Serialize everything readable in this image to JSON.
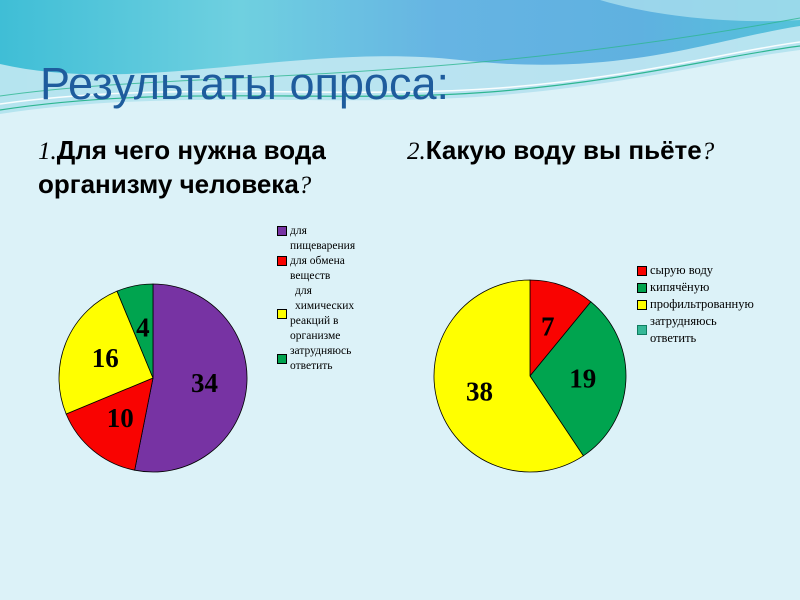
{
  "slide": {
    "title": "Результаты опроса:",
    "title_color": "#1E5C9D",
    "background_color": "#DCF2F8",
    "accent_wave_colors": [
      "#3FBED6",
      "#66B4E3",
      "#2EB691",
      "#C2E8F2"
    ]
  },
  "questions": [
    {
      "prefix": "1.",
      "text": "Для чего нужна вода\nорганизму человека",
      "suffix": "?"
    },
    {
      "prefix": "2.",
      "text": "Какую воду вы пьёте",
      "suffix": "?"
    }
  ],
  "chart_data": [
    {
      "type": "pie",
      "title": "1.Для чего нужна вода организму человека?",
      "categories": [
        "для пищеварения",
        "для обмена веществ",
        "для химических реакций в организме",
        "затрудняюсь ответить"
      ],
      "values": [
        34,
        10,
        16,
        4
      ],
      "colors": [
        "#7733A3",
        "#F90301",
        "#FFFF00",
        "#00A44F"
      ],
      "data_label_color": "#000000",
      "start_angle_deg": 0,
      "direction": "clockwise",
      "legend_position": "right",
      "legend": [
        {
          "lines": [
            "для",
            "пищеварения"
          ],
          "color": "#7733A3"
        },
        {
          "lines": [
            "для обмена",
            "веществ"
          ],
          "color": "#F90301"
        },
        {
          "lines": [
            "для химических",
            "реакций в",
            "организме"
          ],
          "color": "#FFFF00"
        },
        {
          "lines": [
            "затрудняюсь",
            "ответить"
          ],
          "color": "#00A44F"
        }
      ]
    },
    {
      "type": "pie",
      "title": "2.Какую воду вы пьёте?",
      "categories": [
        "сырую воду",
        "кипячёную",
        "профильтрованную",
        "затрудняюсь ответить"
      ],
      "values": [
        7,
        19,
        38,
        0
      ],
      "colors": [
        "#F90301",
        "#00A44F",
        "#FFFF00",
        "#35B897"
      ],
      "data_label_color": "#000000",
      "start_angle_deg": 0,
      "direction": "clockwise",
      "legend_position": "right",
      "legend": [
        {
          "lines": [
            "сырую воду"
          ],
          "color": "#F90301"
        },
        {
          "lines": [
            "кипячёную"
          ],
          "color": "#00A44F"
        },
        {
          "lines": [
            "профильтрованную"
          ],
          "color": "#FFFF00"
        },
        {
          "lines": [
            "затрудняюсь",
            "ответить"
          ],
          "color": "#35B897"
        }
      ]
    }
  ]
}
